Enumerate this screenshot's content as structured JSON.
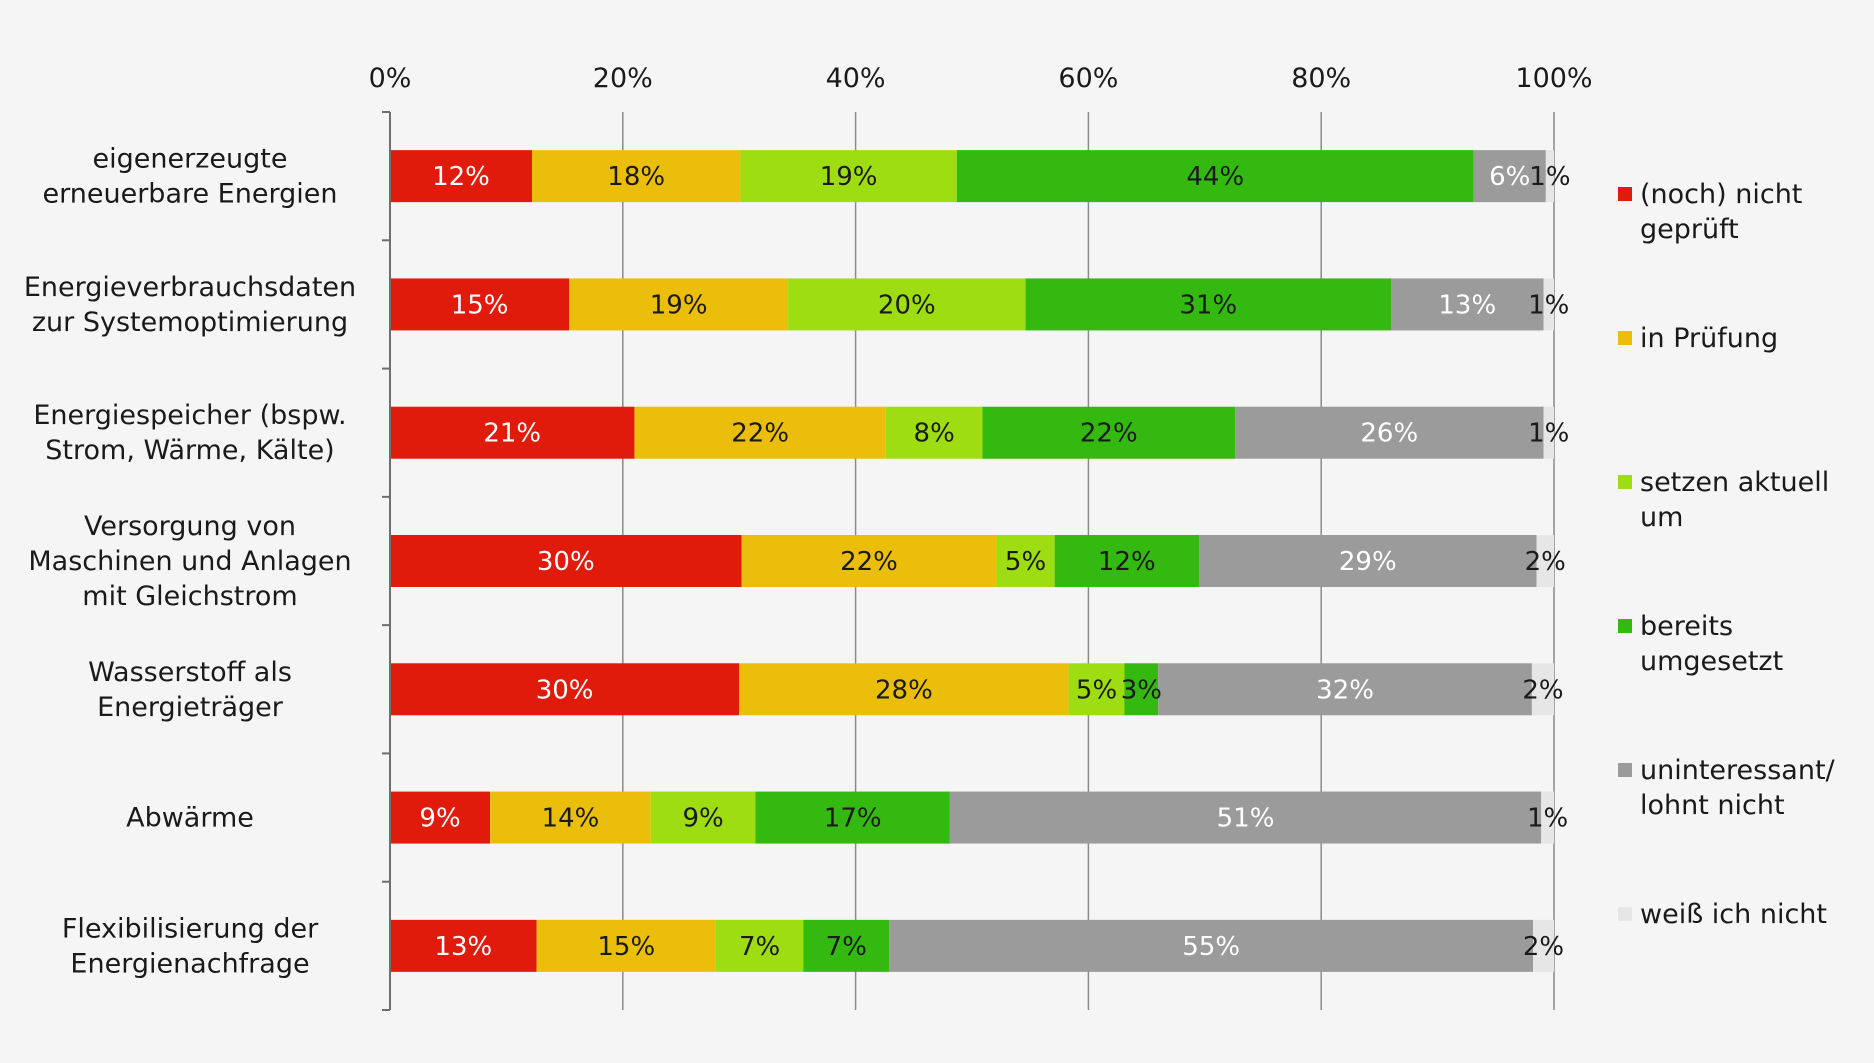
{
  "chart_data": {
    "type": "bar",
    "orientation": "horizontal",
    "stacked": true,
    "xlim": [
      0,
      100
    ],
    "x_ticks": [
      "0%",
      "20%",
      "40%",
      "60%",
      "80%",
      "100%"
    ],
    "x_axis_position": "top",
    "grid": "vertical",
    "legend_placement": "right",
    "categories": [
      [
        "eigenerzeugte",
        "erneuerbare Energien"
      ],
      [
        "Energieverbrauchsdaten",
        "zur Systemoptimierung"
      ],
      [
        "Energiespeicher (bspw.",
        "Strom,  Wärme, Kälte)"
      ],
      [
        "Versorgung von",
        "Maschinen und Anlagen",
        "mit Gleichstrom"
      ],
      [
        "Wasserstoff als",
        "Energieträger"
      ],
      [
        "Abwärme"
      ],
      [
        "Flexibilisierung der",
        "Energienachfrage"
      ]
    ],
    "series": [
      {
        "name": [
          "(noch) nicht",
          "geprüft"
        ],
        "color": "#e01b0c",
        "label_color": "#ffffff",
        "values": [
          12.2,
          15.4,
          21.0,
          30.2,
          30.0,
          8.6,
          12.6
        ],
        "labels": [
          "12%",
          "15%",
          "21%",
          "30%",
          "30%",
          "9%",
          "13%"
        ]
      },
      {
        "name": [
          "in Prüfung"
        ],
        "color": "#ebbe0b",
        "label_color": "#1a1a1a",
        "values": [
          17.9,
          18.8,
          21.6,
          21.9,
          28.3,
          13.8,
          15.4
        ],
        "labels": [
          "18%",
          "19%",
          "22%",
          "22%",
          "28%",
          "14%",
          "15%"
        ]
      },
      {
        "name": [
          "setzen aktuell",
          "um"
        ],
        "color": "#9edd12",
        "label_color": "#1a1a1a",
        "values": [
          18.6,
          20.4,
          8.3,
          5.0,
          4.8,
          9.0,
          7.5
        ],
        "labels": [
          "19%",
          "20%",
          "8%",
          "5%",
          "5%",
          "9%",
          "7%"
        ]
      },
      {
        "name": [
          "bereits",
          "umgesetzt"
        ],
        "color": "#33b910",
        "label_color": "#1a1a1a",
        "values": [
          44.4,
          31.4,
          21.7,
          12.4,
          2.9,
          16.7,
          7.4
        ],
        "labels": [
          "44%",
          "31%",
          "22%",
          "12%",
          "3%",
          "17%",
          "7%"
        ]
      },
      {
        "name": [
          "uninteressant/",
          "lohnt nicht"
        ],
        "color": "#9b9b9b",
        "label_color": "#ffffff",
        "values": [
          6.2,
          13.1,
          26.5,
          29.0,
          32.1,
          50.8,
          55.3
        ],
        "labels": [
          "6%",
          "13%",
          "26%",
          "29%",
          "32%",
          "51%",
          "55%"
        ]
      },
      {
        "name": [
          "weiß ich nicht"
        ],
        "color": "#e6e6e6",
        "label_color": "#1a1a1a",
        "values": [
          0.7,
          0.9,
          0.9,
          1.5,
          1.9,
          1.1,
          1.8
        ],
        "labels": [
          "1%",
          "1%",
          "1%",
          "2%",
          "2%",
          "1%",
          "2%"
        ]
      }
    ]
  }
}
